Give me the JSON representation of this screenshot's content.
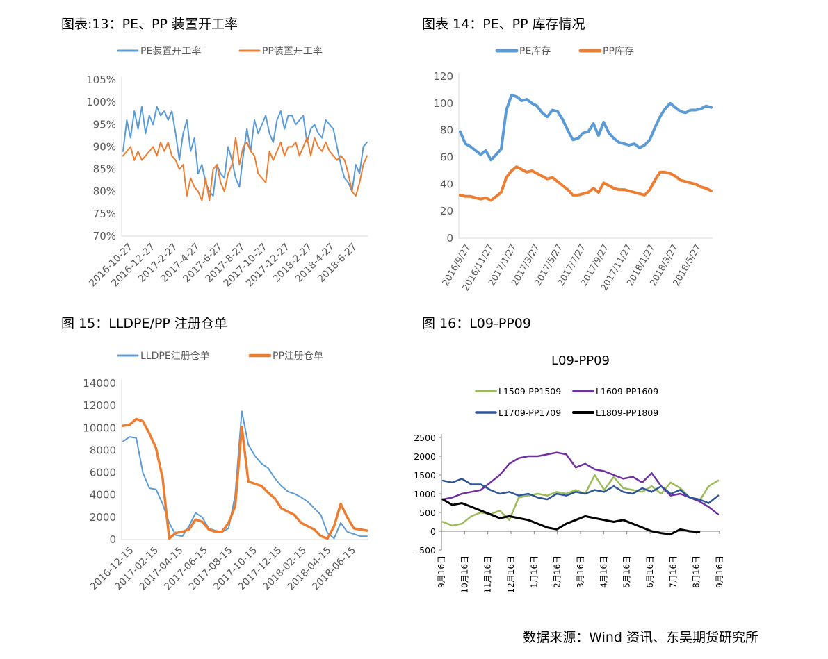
{
  "panels": {
    "fig13": {
      "title": "图表:13：PE、PP 装置开工率"
    },
    "fig14": {
      "title": "图表 14：PE、PP 库存情况"
    },
    "fig15": {
      "title": "图 15：LLDPE/PP 注册仓单"
    },
    "fig16": {
      "title": "图 16：L09-PP09"
    }
  },
  "source": "数据来源：Wind 资讯、东吴期货研究所",
  "chart_data": [
    {
      "id": "fig13",
      "type": "line",
      "title": "",
      "ylim": [
        70,
        105
      ],
      "y_ticks": [
        70,
        75,
        80,
        85,
        90,
        95,
        100,
        105
      ],
      "y_tick_labels": [
        "70%",
        "75%",
        "80%",
        "85%",
        "90%",
        "95%",
        "100%",
        "105%"
      ],
      "x_tick_labels": [
        "2016-10-27",
        "2016-12-27",
        "2017-2-27",
        "2017-4-27",
        "2017-6-27",
        "2017-8-27",
        "2017-10-27",
        "2017-12-27",
        "2018-2-27",
        "2018-4-27",
        "2018-6-27"
      ],
      "legend_position": "top",
      "grid": false,
      "series": [
        {
          "name": "PE装置开工率",
          "color": "#5b9bd5",
          "values": [
            89,
            96,
            92,
            98,
            94,
            99,
            93,
            97,
            95,
            99,
            97,
            98,
            96,
            98,
            93,
            87,
            93,
            96,
            89,
            92,
            84,
            86,
            82,
            80,
            79,
            86,
            84,
            83,
            90,
            87,
            83,
            81,
            88,
            94,
            89,
            96,
            93,
            95,
            97,
            93,
            91,
            96,
            98,
            94,
            97,
            97,
            95,
            96,
            97,
            91,
            94,
            95,
            93,
            92,
            96,
            95,
            94,
            90,
            86,
            83,
            82,
            80,
            86,
            84,
            90,
            91
          ]
        },
        {
          "name": "PP装置开工率",
          "color": "#ed7d31",
          "values": [
            88,
            89,
            90,
            87,
            89,
            87,
            88,
            89,
            90,
            88,
            91,
            89,
            91,
            88,
            87,
            85,
            86,
            79,
            83,
            81,
            80,
            78,
            83,
            78,
            85,
            86,
            82,
            80,
            84,
            86,
            92,
            86,
            90,
            91,
            89,
            88,
            84,
            83,
            82,
            89,
            87,
            89,
            91,
            88,
            90,
            90,
            91,
            88,
            90,
            92,
            88,
            92,
            90,
            89,
            91,
            89,
            88,
            87,
            88,
            87,
            84,
            80,
            79,
            82,
            86,
            88
          ]
        }
      ]
    },
    {
      "id": "fig14",
      "type": "line",
      "title": "",
      "ylim": [
        0,
        120
      ],
      "y_ticks": [
        0,
        20,
        40,
        60,
        80,
        100,
        120
      ],
      "y_tick_labels": [
        "0",
        "20",
        "40",
        "60",
        "80",
        "100",
        "120"
      ],
      "x_tick_labels": [
        "2016/9/27",
        "2016/11/27",
        "2017/1/27",
        "2017/3/27",
        "2017/5/27",
        "2017/7/27",
        "2017/9/27",
        "2017/11/27",
        "2018/1/27",
        "2018/3/27",
        "2018/5/27"
      ],
      "legend_position": "top",
      "grid": false,
      "series": [
        {
          "name": "PE库存",
          "color": "#5b9bd5",
          "values": [
            79,
            70,
            68,
            65,
            62,
            65,
            58,
            62,
            66,
            95,
            106,
            105,
            102,
            103,
            100,
            98,
            93,
            90,
            95,
            94,
            88,
            80,
            73,
            74,
            78,
            79,
            85,
            76,
            86,
            78,
            74,
            71,
            70,
            69,
            70,
            67,
            69,
            73,
            82,
            90,
            96,
            100,
            97,
            94,
            93,
            95,
            95,
            96,
            98,
            97
          ]
        },
        {
          "name": "PP库存",
          "color": "#ed7d31",
          "values": [
            32,
            31,
            31,
            30,
            29,
            30,
            28,
            31,
            34,
            45,
            50,
            53,
            51,
            49,
            50,
            48,
            46,
            44,
            45,
            42,
            39,
            36,
            32,
            32,
            33,
            34,
            37,
            34,
            41,
            39,
            37,
            36,
            36,
            35,
            34,
            33,
            32,
            36,
            43,
            49,
            49,
            48,
            46,
            43,
            42,
            41,
            40,
            38,
            37,
            35
          ]
        }
      ]
    },
    {
      "id": "fig15",
      "type": "line",
      "title": "",
      "ylim": [
        0,
        14000
      ],
      "y_ticks": [
        0,
        2000,
        4000,
        6000,
        8000,
        10000,
        12000,
        14000
      ],
      "y_tick_labels": [
        "0",
        "2000",
        "4000",
        "6000",
        "8000",
        "10000",
        "12000",
        "14000"
      ],
      "x_tick_labels": [
        "2016-12-15",
        "2017-02-15",
        "2017-04-15",
        "2017-06-15",
        "2017-08-15",
        "2017-10-15",
        "2017-12-15",
        "2018-02-15",
        "2018-04-15",
        "2018-06-15"
      ],
      "legend_position": "top",
      "grid": false,
      "series": [
        {
          "name": "LLDPE注册仓单",
          "color": "#5b9bd5",
          "values": [
            8800,
            9200,
            9100,
            6000,
            4600,
            4500,
            3200,
            1500,
            400,
            300,
            1200,
            2400,
            2000,
            1000,
            800,
            700,
            1000,
            4000,
            11500,
            8500,
            7500,
            6800,
            6400,
            5500,
            4800,
            4300,
            4100,
            3800,
            3400,
            2800,
            2200,
            600,
            100,
            1500,
            700,
            500,
            300,
            300
          ]
        },
        {
          "name": "PP注册仓单",
          "color": "#ed7d31",
          "values": [
            10200,
            10300,
            10800,
            10600,
            9500,
            8200,
            5500,
            100,
            600,
            700,
            900,
            1800,
            1600,
            900,
            700,
            700,
            1500,
            3000,
            10100,
            5200,
            5000,
            4800,
            4200,
            3700,
            2800,
            2500,
            2200,
            1500,
            1200,
            900,
            300,
            100,
            1200,
            3200,
            2000,
            1000,
            900,
            800
          ]
        }
      ]
    },
    {
      "id": "fig16",
      "type": "line",
      "title": "L09-PP09",
      "ylim": [
        -500,
        2500
      ],
      "y_ticks": [
        -500,
        0,
        500,
        1000,
        1500,
        2000,
        2500
      ],
      "y_tick_labels": [
        "-500",
        "0",
        "500",
        "1000",
        "1500",
        "2000",
        "2500"
      ],
      "x_tick_labels": [
        "9月16日",
        "10月16日",
        "11月16日",
        "12月16日",
        "1月16日",
        "2月16日",
        "3月16日",
        "4月16日",
        "5月16日",
        "6月16日",
        "7月16日",
        "8月16日",
        "9月16日"
      ],
      "legend_position": "top",
      "grid": false,
      "series": [
        {
          "name": "L1509-PP1509",
          "color": "#9bbb59",
          "values": [
            250,
            150,
            200,
            400,
            500,
            450,
            550,
            300,
            900,
            950,
            1000,
            950,
            1050,
            1000,
            1100,
            1000,
            1500,
            1100,
            1450,
            1150,
            1100,
            1050,
            1200,
            1000,
            1300,
            1150,
            900,
            800,
            1200,
            1350
          ]
        },
        {
          "name": "L1609-PP1609",
          "color": "#7030a0",
          "values": [
            850,
            900,
            1000,
            1050,
            1100,
            1300,
            1500,
            1800,
            1950,
            2000,
            2000,
            2050,
            2100,
            2050,
            1700,
            1800,
            1650,
            1600,
            1500,
            1400,
            1450,
            1300,
            1550,
            1200,
            950,
            1000,
            900,
            800,
            650,
            450
          ]
        },
        {
          "name": "L1709-PP1709",
          "color": "#2e5597",
          "values": [
            1350,
            1300,
            1400,
            1250,
            1250,
            1100,
            1000,
            1050,
            950,
            1000,
            900,
            850,
            1000,
            950,
            1050,
            1000,
            1100,
            1050,
            1200,
            1050,
            1000,
            1150,
            1050,
            1200,
            1000,
            1100,
            900,
            850,
            750,
            950
          ]
        },
        {
          "name": "L1809-PP1809",
          "color": "#000000",
          "values": [
            850,
            700,
            750,
            650,
            550,
            450,
            350,
            400,
            350,
            300,
            200,
            100,
            50,
            200,
            300,
            400,
            350,
            300,
            250,
            300,
            200,
            100,
            0,
            -50,
            -80,
            50,
            0,
            -20
          ]
        }
      ]
    }
  ]
}
